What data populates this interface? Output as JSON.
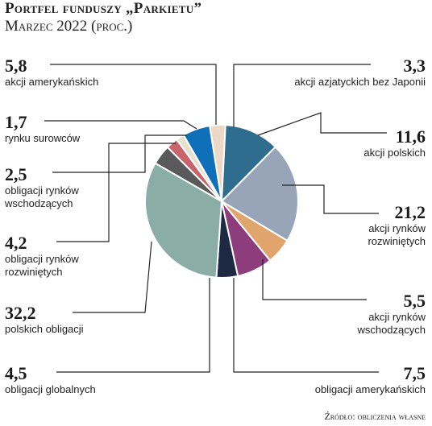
{
  "header": {
    "title": "Portfel funduszy „Parkietu”",
    "subtitle": "Marzec 2022 (proc.)"
  },
  "source": "Źródło: obliczenia własne",
  "chart_data": {
    "type": "pie",
    "title": "Portfel funduszy „Parkietu”",
    "subtitle": "Marzec 2022 (proc.)",
    "unit": "proc.",
    "slices": [
      {
        "value": "3,3",
        "num": 3.3,
        "label": "akcji azjatyckich bez Japonii",
        "color": "#ecd8c6"
      },
      {
        "value": "11,6",
        "num": 11.6,
        "label": "akcji polskich",
        "color": "#2f6d8f"
      },
      {
        "value": "21,2",
        "num": 21.2,
        "label": "akcji rynków rozwiniętych",
        "color": "#98a5b8"
      },
      {
        "value": "5,5",
        "num": 5.5,
        "label": "akcji rynków wschodzących",
        "color": "#e0a56d"
      },
      {
        "value": "7,5",
        "num": 7.5,
        "label": "obligacji amerykańskich",
        "color": "#8e3d7c"
      },
      {
        "value": "4,5",
        "num": 4.5,
        "label": "obligacji globalnych",
        "color": "#1e2a44"
      },
      {
        "value": "32,2",
        "num": 32.2,
        "label": "polskich obligacji",
        "color": "#8aaea5"
      },
      {
        "value": "4,2",
        "num": 4.2,
        "label": "obligacji rynków rozwiniętych",
        "color": "#5a5a5a"
      },
      {
        "value": "2,5",
        "num": 2.5,
        "label": "obligacji rynków wschodzących",
        "color": "#c9646d"
      },
      {
        "value": "1,7",
        "num": 1.7,
        "label": "rynku surowców",
        "color": "#e6e1cf"
      },
      {
        "value": "5,8",
        "num": 5.8,
        "label": "akcji amerykańskich",
        "color": "#0f6fb8"
      }
    ]
  }
}
